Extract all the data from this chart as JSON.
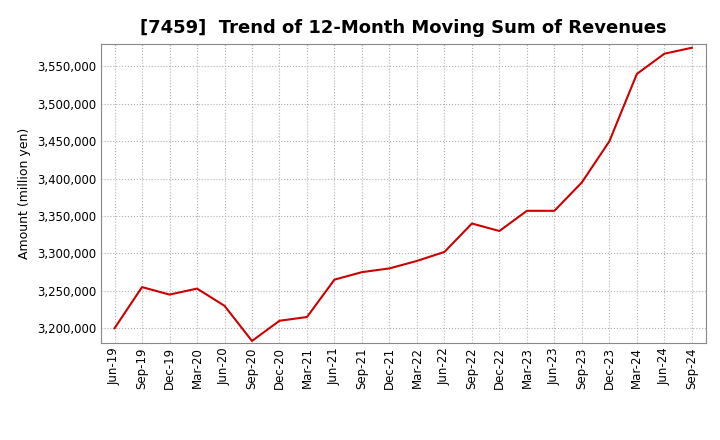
{
  "title": "[7459]  Trend of 12-Month Moving Sum of Revenues",
  "ylabel": "Amount (million yen)",
  "line_color": "#cc0000",
  "background_color": "#ffffff",
  "plot_background": "#ffffff",
  "grid_color": "#b0b0b0",
  "x_labels": [
    "Jun-19",
    "Sep-19",
    "Dec-19",
    "Mar-20",
    "Jun-20",
    "Sep-20",
    "Dec-20",
    "Mar-21",
    "Jun-21",
    "Sep-21",
    "Dec-21",
    "Mar-22",
    "Jun-22",
    "Sep-22",
    "Dec-22",
    "Mar-23",
    "Jun-23",
    "Sep-23",
    "Dec-23",
    "Mar-24",
    "Jun-24",
    "Sep-24"
  ],
  "x_values": [
    0,
    1,
    2,
    3,
    4,
    5,
    6,
    7,
    8,
    9,
    10,
    11,
    12,
    13,
    14,
    15,
    16,
    17,
    18,
    19,
    20,
    21
  ],
  "y_values": [
    3200000,
    3255000,
    3245000,
    3253000,
    3230000,
    3183000,
    3210000,
    3215000,
    3265000,
    3275000,
    3280000,
    3290000,
    3302000,
    3340000,
    3330000,
    3357000,
    3357000,
    3395000,
    3450000,
    3540000,
    3567000,
    3575000
  ],
  "ylim": [
    3180000,
    3580000
  ],
  "yticks": [
    3200000,
    3250000,
    3300000,
    3350000,
    3400000,
    3450000,
    3500000,
    3550000
  ],
  "title_fontsize": 13,
  "ylabel_fontsize": 9,
  "tick_fontsize": 8.5
}
